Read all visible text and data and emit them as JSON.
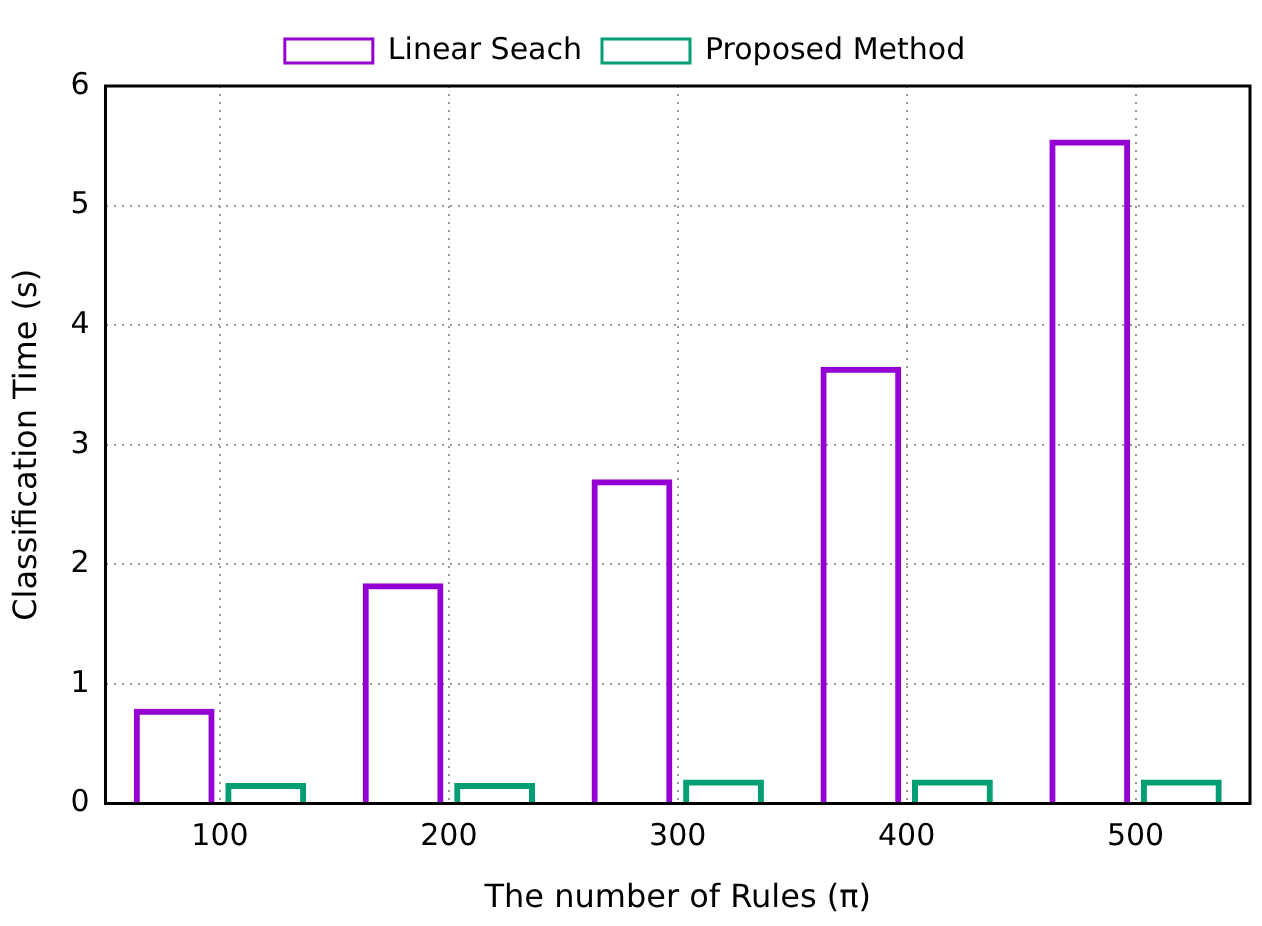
{
  "chart_data": {
    "type": "bar",
    "xlabel": "The number of Rules (π)",
    "ylabel": "Classification Time (s)",
    "categories": [
      "100",
      "200",
      "300",
      "400",
      "500"
    ],
    "series": [
      {
        "name": "Linear Seach",
        "color": "#9400d3",
        "values": [
          0.78,
          1.83,
          2.7,
          3.64,
          5.54
        ]
      },
      {
        "name": "Proposed Method",
        "color": "#009e73",
        "values": [
          0.16,
          0.16,
          0.19,
          0.19,
          0.19
        ]
      }
    ],
    "ylim": [
      0,
      6
    ],
    "yticks": [
      0,
      1,
      2,
      3,
      4,
      5,
      6
    ],
    "grid": true,
    "legend": "top"
  }
}
